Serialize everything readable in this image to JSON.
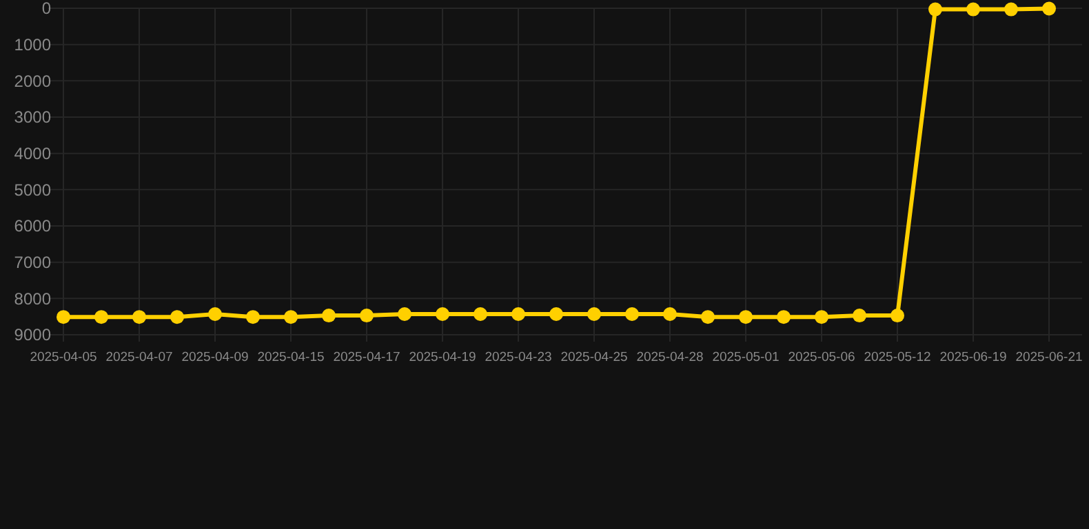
{
  "chart_data": {
    "type": "line",
    "categories": [
      "2025-04-05",
      null,
      "2025-04-07",
      null,
      "2025-04-09",
      null,
      "2025-04-15",
      null,
      "2025-04-17",
      null,
      "2025-04-19",
      null,
      "2025-04-23",
      null,
      "2025-04-25",
      null,
      "2025-04-28",
      null,
      "2025-05-01",
      null,
      "2025-05-06",
      null,
      "2025-05-12",
      null,
      "2025-06-19",
      null,
      "2025-06-21"
    ],
    "series": [
      {
        "color": "#ffd000",
        "values": [
          8510,
          8510,
          8510,
          8510,
          8430,
          8510,
          8510,
          8470,
          8470,
          8430,
          8430,
          8430,
          8430,
          8430,
          8430,
          8430,
          8430,
          8510,
          8510,
          8510,
          8510,
          8470,
          8470,
          30,
          30,
          30,
          10
        ]
      }
    ],
    "ylim": [
      9000,
      0
    ],
    "yticks": [
      0,
      1000,
      2000,
      3000,
      4000,
      5000,
      6000,
      7000,
      8000,
      9000
    ],
    "grid": true,
    "marker": "circle"
  }
}
